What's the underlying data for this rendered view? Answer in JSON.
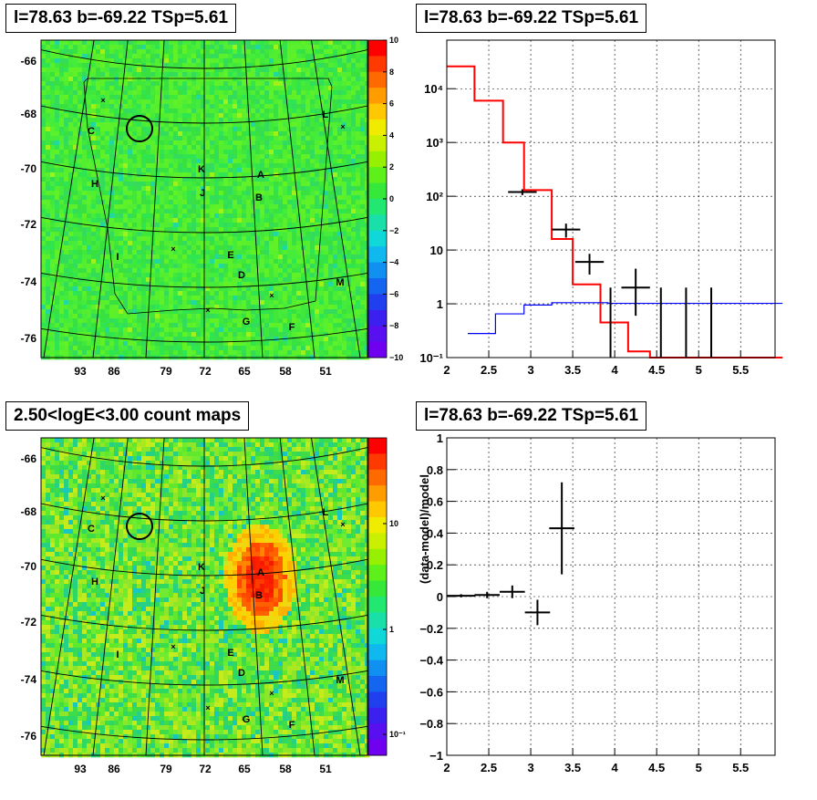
{
  "panels": {
    "top_left_title": "l=78.63 b=-69.22 TSp=5.61",
    "top_right_title": "l=78.63 b=-69.22 TSp=5.61",
    "bottom_left_title": "2.50<logE<3.00 count maps",
    "bottom_right_title": "l=78.63 b=-69.22 TSp=5.61"
  },
  "colors": {
    "map_base": "#3fe83a",
    "model_red": "#ff0000",
    "model_blue": "#0000ff",
    "data_black": "#000000"
  },
  "sky_maps": {
    "y_ticks": [
      "-66",
      "-68",
      "-70",
      "-72",
      "-74",
      "-76"
    ],
    "x_ticks": [
      "93",
      "86",
      "79",
      "72",
      "65",
      "58",
      "51"
    ],
    "source_labels": [
      "C",
      "H",
      "I",
      "K",
      "J",
      "A",
      "B",
      "E",
      "D",
      "G",
      "F",
      "L",
      "M"
    ],
    "top_colorbar_ticks": [
      "10",
      "8",
      "6",
      "4",
      "2",
      "0",
      "−2",
      "−4",
      "−6",
      "−8",
      "−10"
    ],
    "bottom_colorbar_ticks": [
      "10",
      "1",
      "10⁻¹"
    ]
  },
  "chart_data": [
    {
      "type": "heatmap",
      "title": "l=78.63 b=-69.22 TSp=5.61",
      "x_ticks": [
        "93",
        "86",
        "79",
        "72",
        "65",
        "58",
        "51"
      ],
      "y_ticks": [
        "-66",
        "-68",
        "-70",
        "-72",
        "-74",
        "-76"
      ],
      "zlim": [
        -10,
        10
      ],
      "sources": [
        "C",
        "H",
        "I",
        "K",
        "J",
        "A",
        "B",
        "E",
        "D",
        "G",
        "F",
        "L",
        "M"
      ]
    },
    {
      "type": "line",
      "title": "l=78.63 b=-69.22 TSp=5.61",
      "xlim": [
        2,
        6
      ],
      "ylim": [
        0.1,
        80000
      ],
      "y_scale": "log",
      "x_ticks": [
        "2",
        "2.5",
        "3",
        "3.5",
        "4",
        "4.5",
        "5",
        "5.5"
      ],
      "y_ticks": [
        "10⁻¹",
        "1",
        "10",
        "10²",
        "10³",
        "10⁴"
      ],
      "series": [
        {
          "color": "#ff0000",
          "edges": [
            2.0,
            2.33,
            2.67,
            2.92,
            3.25,
            3.5,
            3.83,
            4.16,
            4.42,
            6.0
          ],
          "values": [
            26000,
            6000,
            1000,
            130,
            16,
            2.3,
            0.45,
            0.13,
            0.1
          ]
        },
        {
          "color": "#0000ff",
          "edges": [
            2.25,
            2.58,
            2.92,
            3.25,
            3.58,
            3.92,
            4.25,
            6.0
          ],
          "values": [
            0.28,
            0.65,
            0.95,
            1.05,
            1.05,
            1.02,
            1.02
          ]
        },
        {
          "color": "#000000",
          "points": [
            {
              "x": 2.9,
              "y": 120,
              "xerr": 0.17,
              "lo": 105,
              "hi": 135
            },
            {
              "x": 3.42,
              "y": 24,
              "xerr": 0.17,
              "lo": 17,
              "hi": 31
            },
            {
              "x": 3.7,
              "y": 6,
              "xerr": 0.17,
              "lo": 3.5,
              "hi": 8.5
            },
            {
              "x": 3.95,
              "y": 0.1,
              "xerr": 0.0,
              "lo": 0.1,
              "hi": 2.0
            },
            {
              "x": 4.25,
              "y": 2,
              "xerr": 0.17,
              "lo": 0.6,
              "hi": 4.5
            },
            {
              "x": 4.55,
              "y": 0.1,
              "xerr": 0.0,
              "lo": 0.1,
              "hi": 2.0
            },
            {
              "x": 4.85,
              "y": 0.1,
              "xerr": 0.0,
              "lo": 0.1,
              "hi": 2.0
            },
            {
              "x": 5.15,
              "y": 0.1,
              "xerr": 0.0,
              "lo": 0.1,
              "hi": 2.0
            }
          ]
        }
      ]
    },
    {
      "type": "heatmap",
      "title": "2.50<logE<3.00 count maps",
      "x_ticks": [
        "93",
        "86",
        "79",
        "72",
        "65",
        "58",
        "51"
      ],
      "y_ticks": [
        "-66",
        "-68",
        "-70",
        "-72",
        "-74",
        "-76"
      ],
      "z_scale": "log",
      "z_ticks": [
        "10",
        "1",
        "10⁻¹"
      ],
      "sources": [
        "C",
        "H",
        "I",
        "K",
        "J",
        "A",
        "B",
        "E",
        "D",
        "G",
        "F",
        "L",
        "M"
      ]
    },
    {
      "type": "scatter",
      "title": "l=78.63 b=-69.22 TSp=5.61",
      "ylabel": "(data-model)/model",
      "xlim": [
        2,
        6
      ],
      "ylim": [
        -1,
        1
      ],
      "x_ticks": [
        "2",
        "2.5",
        "3",
        "3.5",
        "4",
        "4.5",
        "5",
        "5.5"
      ],
      "y_ticks": [
        "−1",
        "−0.8",
        "−0.6",
        "−0.4",
        "−0.2",
        "0",
        "0.2",
        "0.4",
        "0.6",
        "0.8",
        "1"
      ],
      "points": [
        {
          "x": 2.17,
          "y": 0.005,
          "xerr": 0.17,
          "yerr": 0.01
        },
        {
          "x": 2.48,
          "y": 0.01,
          "xerr": 0.15,
          "yerr": 0.02
        },
        {
          "x": 2.78,
          "y": 0.03,
          "xerr": 0.15,
          "yerr": 0.04
        },
        {
          "x": 3.08,
          "y": -0.1,
          "xerr": 0.15,
          "yerr": 0.08
        },
        {
          "x": 3.37,
          "y": 0.43,
          "xerr": 0.15,
          "yerr": 0.29
        }
      ]
    }
  ]
}
